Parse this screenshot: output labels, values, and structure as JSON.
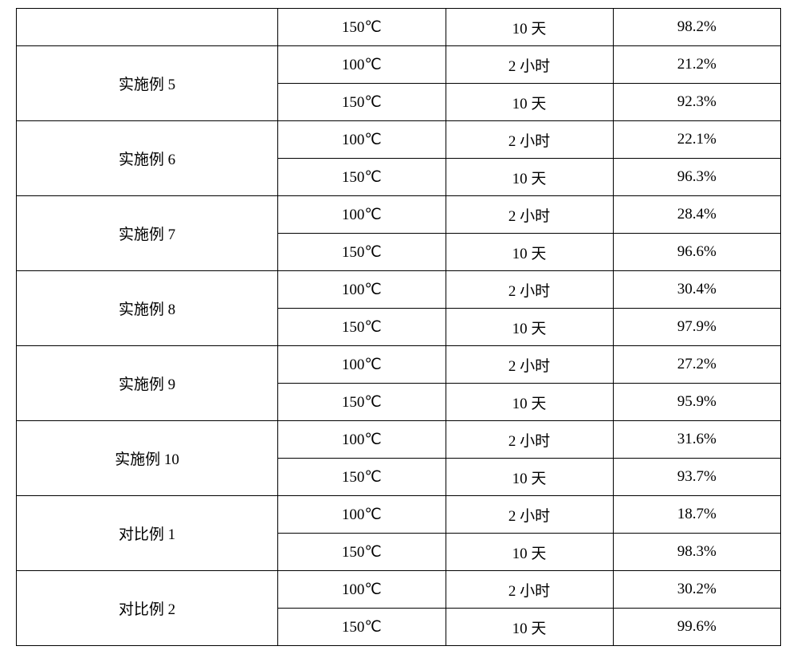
{
  "table": {
    "rows": [
      {
        "label": "",
        "rowspan": 1,
        "temp": "150℃",
        "time": "10 天",
        "pct": "98.2%"
      },
      {
        "label": "实施例 5",
        "rowspan": 2,
        "temp": "100℃",
        "time": "2 小时",
        "pct": "21.2%"
      },
      {
        "label": null,
        "temp": "150℃",
        "time": "10 天",
        "pct": "92.3%"
      },
      {
        "label": "实施例 6",
        "rowspan": 2,
        "temp": "100℃",
        "time": "2 小时",
        "pct": "22.1%"
      },
      {
        "label": null,
        "temp": "150℃",
        "time": "10 天",
        "pct": "96.3%"
      },
      {
        "label": "实施例 7",
        "rowspan": 2,
        "temp": "100℃",
        "time": "2 小时",
        "pct": "28.4%"
      },
      {
        "label": null,
        "temp": "150℃",
        "time": "10 天",
        "pct": "96.6%"
      },
      {
        "label": "实施例 8",
        "rowspan": 2,
        "temp": "100℃",
        "time": "2 小时",
        "pct": "30.4%"
      },
      {
        "label": null,
        "temp": "150℃",
        "time": "10 天",
        "pct": "97.9%"
      },
      {
        "label": "实施例 9",
        "rowspan": 2,
        "temp": "100℃",
        "time": "2 小时",
        "pct": "27.2%"
      },
      {
        "label": null,
        "temp": "150℃",
        "time": "10 天",
        "pct": "95.9%"
      },
      {
        "label": "实施例 10",
        "rowspan": 2,
        "temp": "100℃",
        "time": "2 小时",
        "pct": "31.6%"
      },
      {
        "label": null,
        "temp": "150℃",
        "time": "10 天",
        "pct": "93.7%"
      },
      {
        "label": "对比例 1",
        "rowspan": 2,
        "temp": "100℃",
        "time": "2 小时",
        "pct": "18.7%"
      },
      {
        "label": null,
        "temp": "150℃",
        "time": "10 天",
        "pct": "98.3%"
      },
      {
        "label": "对比例 2",
        "rowspan": 2,
        "temp": "100℃",
        "time": "2 小时",
        "pct": "30.2%"
      },
      {
        "label": null,
        "temp": "150℃",
        "time": "10 天",
        "pct": "99.6%"
      }
    ],
    "colors": {
      "border": "#000000",
      "text": "#000000",
      "background": "#ffffff"
    },
    "font_size_pt": 14
  }
}
